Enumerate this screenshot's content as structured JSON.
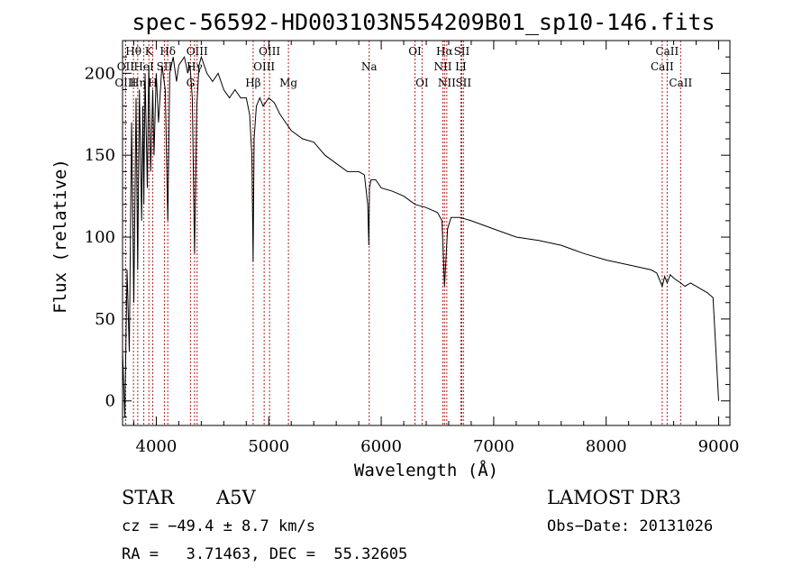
{
  "chart_data": {
    "type": "line",
    "title": "spec-56592-HD003103N554209B01_sp10-146.fits",
    "xlabel": "Wavelength (Å)",
    "ylabel": "Flux (relative)",
    "xlim": [
      3700,
      9100
    ],
    "ylim": [
      -15,
      220
    ],
    "xticks": [
      4000,
      5000,
      6000,
      7000,
      8000,
      9000
    ],
    "yticks": [
      0,
      50,
      100,
      150,
      200
    ],
    "series": [
      {
        "name": "flux",
        "x": [
          3700,
          3720,
          3740,
          3760,
          3780,
          3800,
          3820,
          3835,
          3850,
          3870,
          3880,
          3889,
          3900,
          3920,
          3933,
          3950,
          3968,
          3980,
          4000,
          4020,
          4050,
          4080,
          4102,
          4120,
          4150,
          4180,
          4200,
          4250,
          4280,
          4300,
          4320,
          4340,
          4360,
          4380,
          4400,
          4450,
          4500,
          4550,
          4600,
          4650,
          4700,
          4750,
          4800,
          4830,
          4850,
          4861,
          4870,
          4890,
          4920,
          4950,
          5000,
          5050,
          5100,
          5150,
          5200,
          5300,
          5400,
          5500,
          5600,
          5700,
          5800,
          5850,
          5880,
          5890,
          5895,
          5910,
          5950,
          6000,
          6100,
          6200,
          6300,
          6400,
          6500,
          6540,
          6563,
          6590,
          6620,
          6700,
          6800,
          7000,
          7200,
          7400,
          7600,
          7800,
          8000,
          8200,
          8400,
          8450,
          8498,
          8520,
          8542,
          8570,
          8600,
          8662,
          8700,
          8750,
          8800,
          8850,
          8900,
          8950,
          9000
        ],
        "y": [
          30,
          -10,
          80,
          30,
          170,
          60,
          185,
          80,
          190,
          110,
          180,
          120,
          200,
          130,
          205,
          140,
          190,
          150,
          200,
          170,
          205,
          190,
          110,
          200,
          210,
          195,
          205,
          210,
          200,
          205,
          185,
          90,
          180,
          205,
          210,
          200,
          195,
          200,
          190,
          185,
          190,
          185,
          185,
          175,
          150,
          85,
          160,
          180,
          185,
          180,
          185,
          182,
          175,
          170,
          165,
          160,
          158,
          150,
          145,
          140,
          140,
          138,
          120,
          95,
          130,
          135,
          135,
          130,
          128,
          125,
          120,
          118,
          115,
          110,
          70,
          105,
          112,
          112,
          110,
          105,
          100,
          98,
          95,
          90,
          86,
          83,
          80,
          78,
          70,
          76,
          72,
          77,
          75,
          72,
          70,
          72,
          70,
          68,
          66,
          63,
          0
        ]
      }
    ],
    "lines": [
      {
        "name": "Hθ",
        "wave": 3797,
        "row": 1
      },
      {
        "name": "OII",
        "wave": 3727,
        "row": 2
      },
      {
        "name": "OIII",
        "wave": 3727,
        "row": 3
      },
      {
        "name": "Hη",
        "wave": 3835,
        "row": 3
      },
      {
        "name": "K",
        "wave": 3934,
        "row": 1
      },
      {
        "name": "HeI",
        "wave": 3889,
        "row": 2
      },
      {
        "name": "SII",
        "wave": 4072,
        "row": 2
      },
      {
        "name": "H",
        "wave": 3968,
        "row": 3
      },
      {
        "name": "Hδ",
        "wave": 4102,
        "row": 1
      },
      {
        "name": "OIII",
        "wave": 4363,
        "row": 1
      },
      {
        "name": "Hγ",
        "wave": 4340,
        "row": 2
      },
      {
        "name": "G",
        "wave": 4304,
        "row": 3
      },
      {
        "name": "Hβ",
        "wave": 4861,
        "row": 3
      },
      {
        "name": "OIII",
        "wave": 5007,
        "row": 1
      },
      {
        "name": "OIII",
        "wave": 4959,
        "row": 2
      },
      {
        "name": "Mg",
        "wave": 5175,
        "row": 3
      },
      {
        "name": "Na",
        "wave": 5893,
        "row": 2
      },
      {
        "name": "OI",
        "wave": 6300,
        "row": 1
      },
      {
        "name": "OI",
        "wave": 6363,
        "row": 3
      },
      {
        "name": "Hα",
        "wave": 6563,
        "row": 1
      },
      {
        "name": "NII",
        "wave": 6548,
        "row": 2
      },
      {
        "name": "NII",
        "wave": 6583,
        "row": 3
      },
      {
        "name": "SII",
        "wave": 6716,
        "row": 1
      },
      {
        "name": "LI",
        "wave": 6708,
        "row": 2
      },
      {
        "name": "SII",
        "wave": 6731,
        "row": 3
      },
      {
        "name": "CaII",
        "wave": 8542,
        "row": 1
      },
      {
        "name": "CaII",
        "wave": 8498,
        "row": 2
      },
      {
        "name": "CaII",
        "wave": 8662,
        "row": 3
      }
    ]
  },
  "info": {
    "object_class": "STAR",
    "subclass": "A5V",
    "survey": "LAMOST DR3",
    "cz": "cz = −49.4 ± 8.7 km/s",
    "obs_date": "Obs−Date: 20131026",
    "coords": "RA =   3.71463, DEC =  55.32605"
  }
}
